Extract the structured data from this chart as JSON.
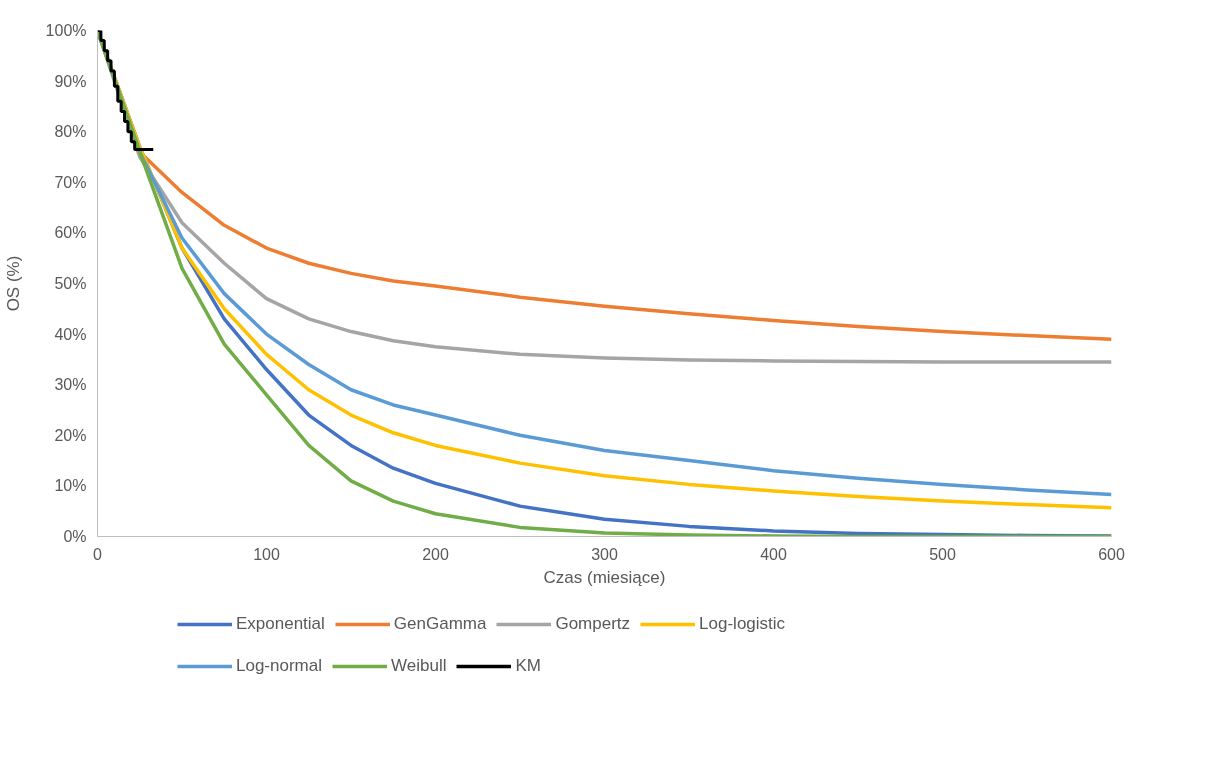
{
  "chart_data": {
    "type": "line",
    "xlabel": "Czas (miesiące)",
    "ylabel": "OS (%)",
    "xlim": [
      0,
      600
    ],
    "xticks": [
      0,
      100,
      200,
      300,
      400,
      500,
      600
    ],
    "ylim": [
      0,
      100
    ],
    "yticks": [
      {
        "value": 0,
        "label": "0%"
      },
      {
        "value": 10,
        "label": "10%"
      },
      {
        "value": 20,
        "label": "20%"
      },
      {
        "value": 30,
        "label": "30%"
      },
      {
        "value": 40,
        "label": "40%"
      },
      {
        "value": 50,
        "label": "50%"
      },
      {
        "value": 60,
        "label": "60%"
      },
      {
        "value": 70,
        "label": "70%"
      },
      {
        "value": 80,
        "label": "80%"
      },
      {
        "value": 90,
        "label": "90%"
      },
      {
        "value": 100,
        "label": "100%"
      }
    ],
    "grid": false,
    "legend": "bottom",
    "marker": "none",
    "line_style": "solid",
    "x": [
      0,
      25,
      50,
      75,
      100,
      125,
      150,
      175,
      200,
      250,
      300,
      350,
      400,
      450,
      500,
      550,
      600
    ],
    "series": [
      {
        "name": "Exponential",
        "color": "#4472c4",
        "values": [
          100,
          77,
          57,
          43,
          33,
          24,
          18,
          13.5,
          10.5,
          6,
          3.4,
          2,
          1.1,
          0.6,
          0.4,
          0.2,
          0.1
        ]
      },
      {
        "name": "GenGamma",
        "color": "#ed7d31",
        "values": [
          100,
          76,
          68,
          61.5,
          57,
          54,
          52,
          50.5,
          49.5,
          47.3,
          45.5,
          44,
          42.7,
          41.5,
          40.5,
          39.7,
          39
        ]
      },
      {
        "name": "Gompertz",
        "color": "#a5a5a5",
        "values": [
          100,
          75,
          62,
          54,
          47,
          43,
          40.5,
          38.7,
          37.5,
          36,
          35.3,
          34.9,
          34.7,
          34.6,
          34.5,
          34.5,
          34.5
        ]
      },
      {
        "name": "Log-logistic",
        "color": "#ffc000",
        "values": [
          100,
          77,
          57,
          45,
          36,
          29,
          24,
          20.5,
          18,
          14.5,
          12,
          10.3,
          9,
          7.9,
          7,
          6.3,
          5.7
        ]
      },
      {
        "name": "Log-normal",
        "color": "#5b9bd5",
        "values": [
          100,
          76,
          59,
          48,
          40,
          34,
          29,
          26,
          24,
          20,
          17,
          15,
          13,
          11.5,
          10.3,
          9.2,
          8.3
        ]
      },
      {
        "name": "Weibull",
        "color": "#70ad47",
        "values": [
          100,
          76,
          53,
          38,
          28,
          18,
          11,
          7,
          4.5,
          1.8,
          0.7,
          0.3,
          0.1,
          0,
          0,
          0,
          0
        ]
      },
      {
        "name": "KM",
        "color": "#000000",
        "type": "step",
        "x": [
          0,
          2,
          4,
          6,
          8,
          10,
          12,
          14,
          16,
          18,
          20,
          22,
          33
        ],
        "values": [
          100,
          98,
          96,
          94,
          92,
          89,
          86,
          84,
          82,
          80,
          78,
          76.5,
          76.5
        ]
      }
    ]
  }
}
